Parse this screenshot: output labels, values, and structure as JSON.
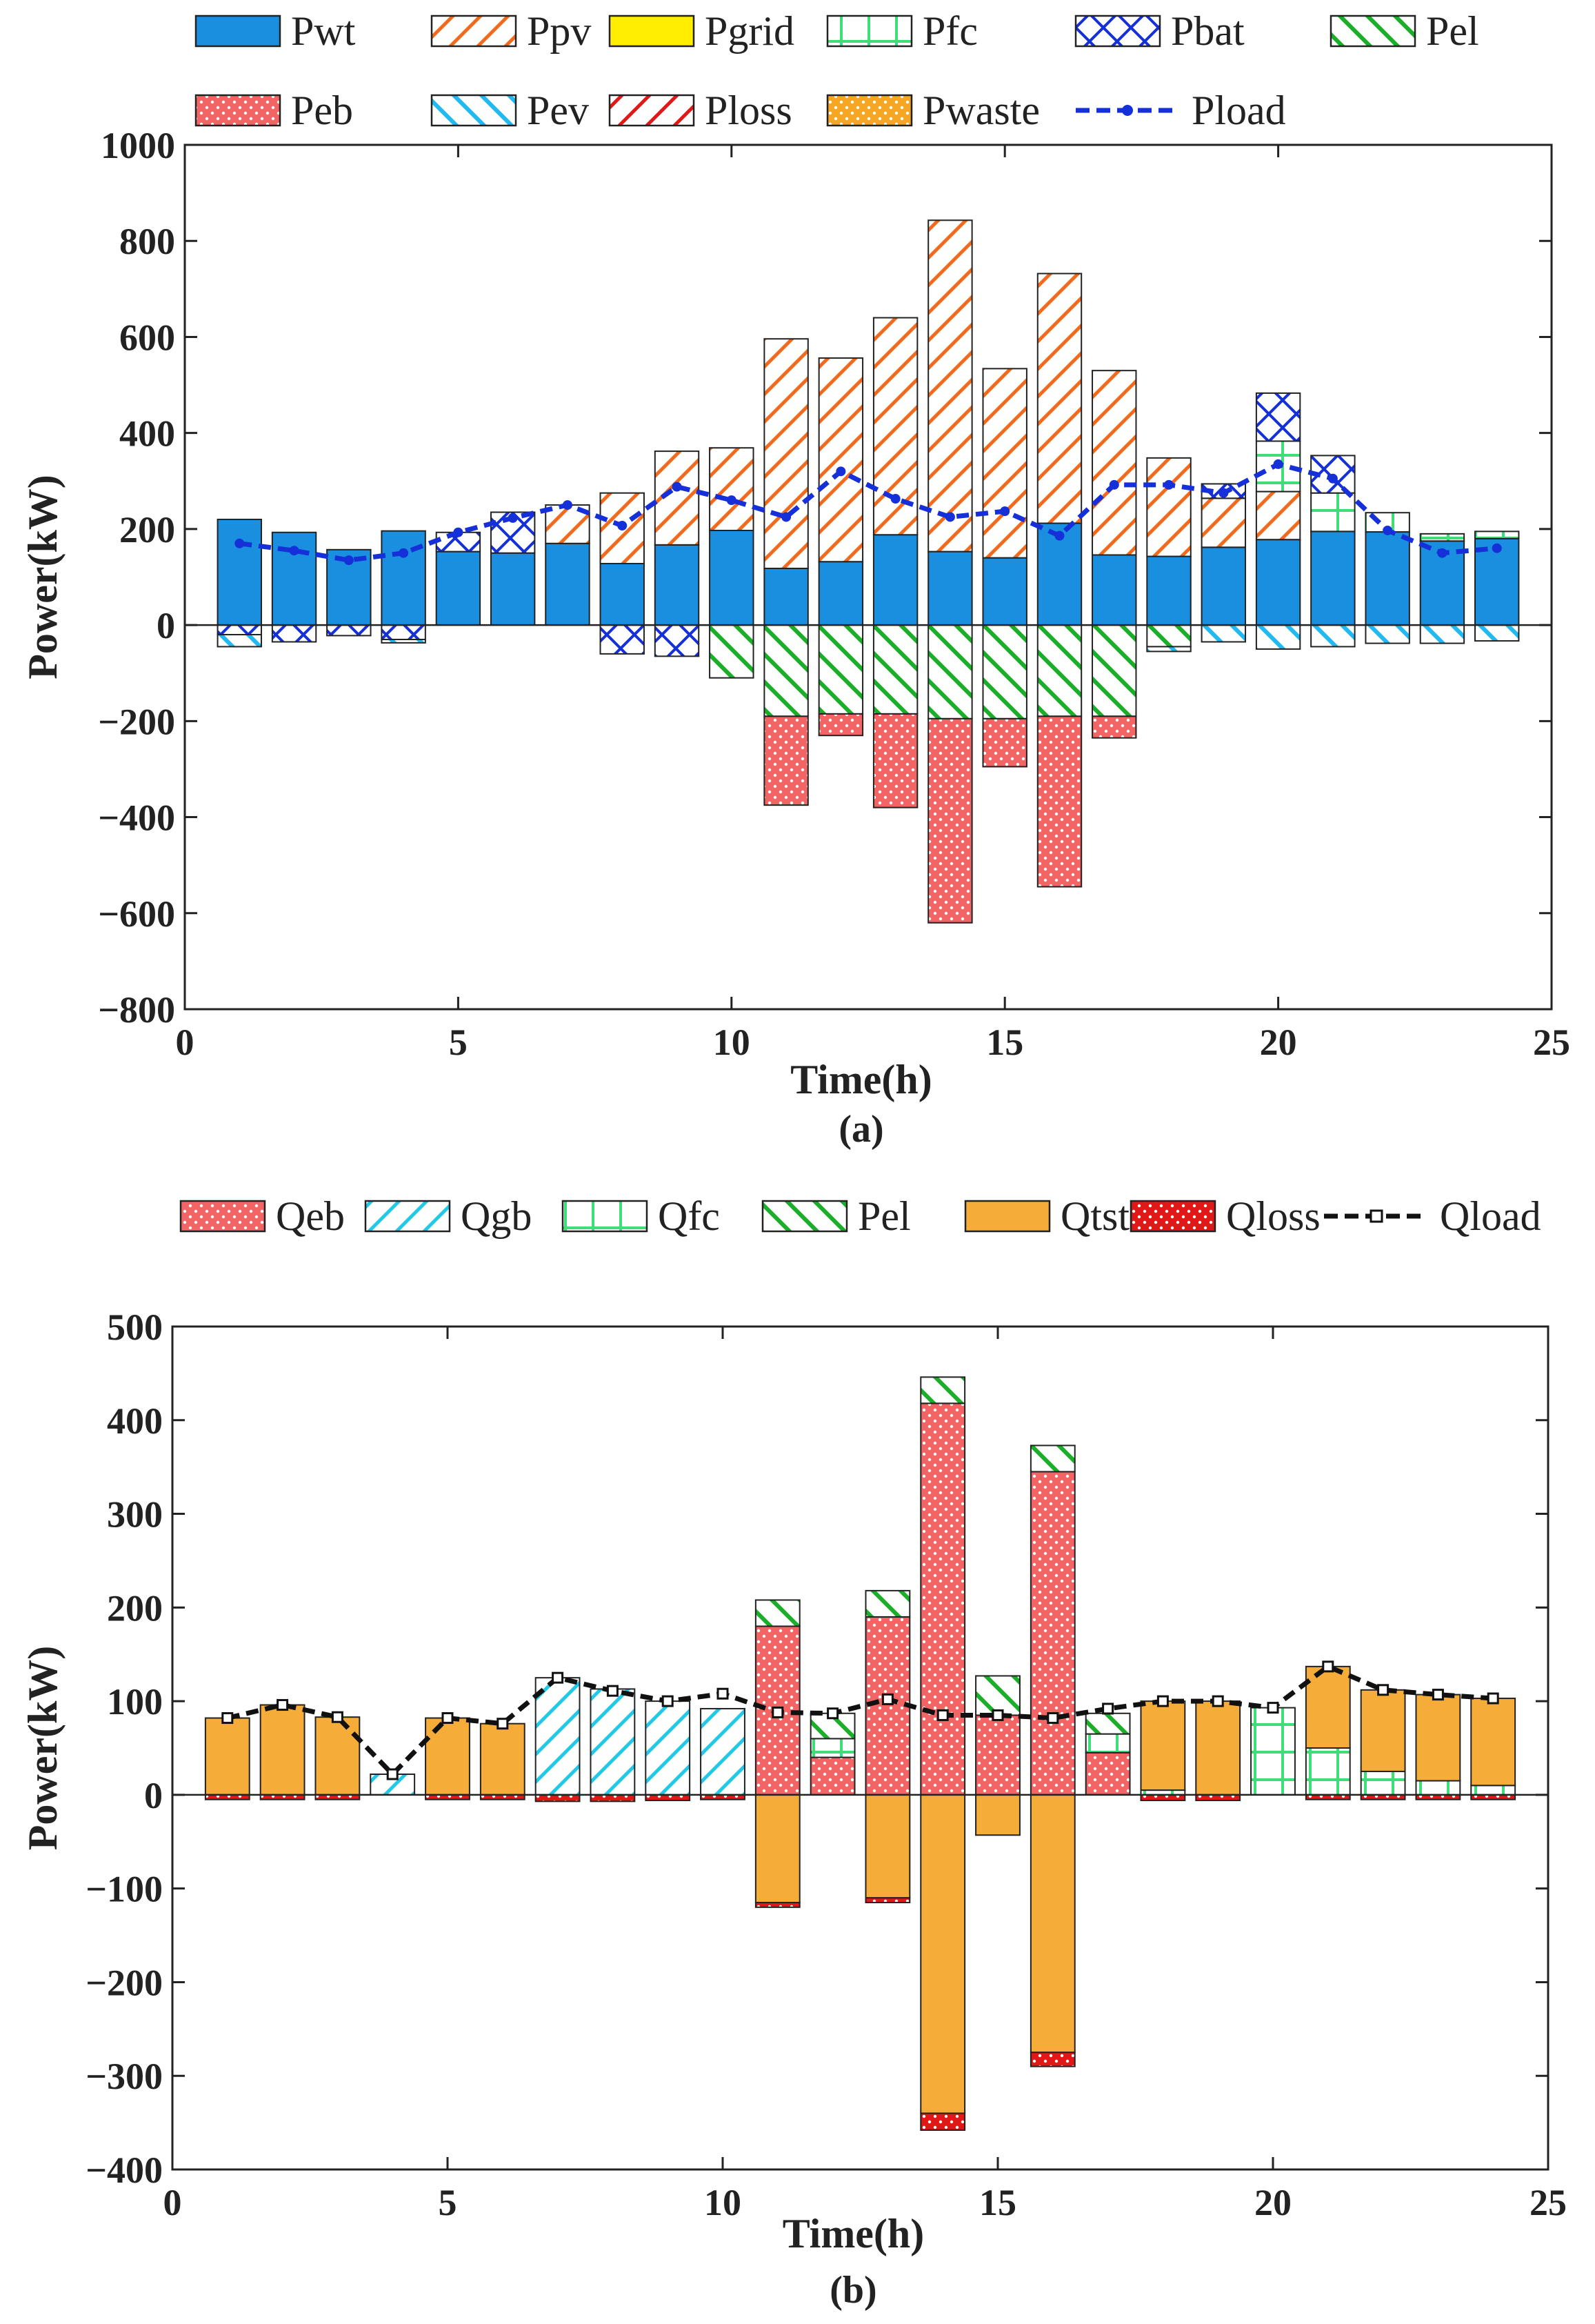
{
  "chart_data": [
    {
      "type": "bar",
      "stacked": true,
      "caption": "(a)",
      "xlabel": "Time(h)",
      "ylabel": "Power(kW)",
      "xlim": [
        0,
        25
      ],
      "ylim": [
        -800,
        1000
      ],
      "xticks": [
        "0",
        "5",
        "10",
        "15",
        "20",
        "25"
      ],
      "yticks": [
        "1000",
        "800",
        "600",
        "400",
        "200",
        "0",
        "−200",
        "−400",
        "−600",
        "−800"
      ],
      "x": [
        1,
        2,
        3,
        4,
        5,
        6,
        7,
        8,
        9,
        10,
        11,
        12,
        13,
        14,
        15,
        16,
        17,
        18,
        19,
        20,
        21,
        22,
        23,
        24
      ],
      "series": [
        {
          "name": "Pwt",
          "color": "#1a8fe0",
          "pattern": "solid",
          "values": [
            220,
            193,
            157,
            196,
            153,
            150,
            170,
            128,
            167,
            197,
            118,
            132,
            188,
            153,
            140,
            212,
            146,
            143,
            162,
            178,
            195,
            194,
            175,
            180
          ]
        },
        {
          "name": "Ppv",
          "color": "#f26b1d",
          "pattern": "diag",
          "values": [
            0,
            0,
            0,
            0,
            0,
            0,
            80,
            147,
            195,
            172,
            478,
            424,
            452,
            690,
            394,
            520,
            384,
            205,
            102,
            100,
            0,
            0,
            0,
            0
          ]
        },
        {
          "name": "Pgrid",
          "color": "#ffee00",
          "pattern": "solid",
          "values": [
            0,
            0,
            0,
            0,
            0,
            0,
            0,
            0,
            0,
            0,
            0,
            0,
            0,
            0,
            0,
            0,
            0,
            0,
            0,
            0,
            0,
            0,
            0,
            0
          ]
        },
        {
          "name": "Pfc",
          "color": "#3fdc78",
          "pattern": "grid",
          "values": [
            0,
            0,
            0,
            0,
            0,
            0,
            0,
            0,
            0,
            0,
            0,
            0,
            0,
            0,
            0,
            0,
            0,
            0,
            0,
            105,
            80,
            40,
            15,
            15
          ]
        },
        {
          "name": "Pbat",
          "color": "#1530d8",
          "pattern": "cross",
          "values": [
            -20,
            -35,
            -22,
            -30,
            40,
            85,
            0,
            -60,
            -65,
            0,
            0,
            0,
            0,
            0,
            0,
            0,
            0,
            0,
            30,
            100,
            78,
            0,
            0,
            0
          ]
        },
        {
          "name": "Pel",
          "color": "#1aae2a",
          "pattern": "diagrev",
          "values": [
            0,
            0,
            0,
            0,
            0,
            0,
            0,
            0,
            0,
            -110,
            -190,
            -185,
            -185,
            -195,
            -195,
            -190,
            -190,
            -45,
            0,
            0,
            0,
            0,
            0,
            0
          ]
        },
        {
          "name": "Peb",
          "color": "#f36464",
          "pattern": "dots",
          "values": [
            0,
            0,
            0,
            0,
            0,
            0,
            0,
            0,
            0,
            0,
            -185,
            -45,
            -195,
            -425,
            -100,
            -355,
            -45,
            0,
            0,
            0,
            0,
            0,
            0,
            0
          ]
        },
        {
          "name": "Pev",
          "color": "#22b8f0",
          "pattern": "diagrev",
          "values": [
            -25,
            0,
            0,
            -7,
            0,
            0,
            0,
            0,
            0,
            0,
            0,
            0,
            0,
            0,
            0,
            0,
            0,
            -10,
            -35,
            -50,
            -45,
            -38,
            -38,
            -33
          ]
        },
        {
          "name": "Ploss",
          "color": "#e01818",
          "pattern": "diag",
          "values": [
            0,
            0,
            0,
            0,
            0,
            0,
            0,
            0,
            0,
            0,
            0,
            0,
            0,
            0,
            0,
            0,
            0,
            0,
            0,
            0,
            0,
            0,
            0,
            0
          ]
        },
        {
          "name": "Pwaste",
          "color": "#f5a623",
          "pattern": "dots",
          "values": [
            0,
            0,
            0,
            0,
            0,
            0,
            0,
            0,
            0,
            0,
            0,
            0,
            0,
            0,
            0,
            0,
            0,
            0,
            0,
            0,
            0,
            0,
            0,
            0
          ]
        }
      ],
      "line": {
        "name": "Pload",
        "color": "#1530d8",
        "style": "dashed-star",
        "values": [
          170,
          155,
          135,
          150,
          193,
          223,
          250,
          207,
          288,
          260,
          225,
          320,
          263,
          225,
          237,
          186,
          292,
          292,
          275,
          335,
          305,
          197,
          150,
          160
        ]
      }
    },
    {
      "type": "bar",
      "stacked": true,
      "caption": "(b)",
      "xlabel": "Time(h)",
      "ylabel": "Power(kW)",
      "xlim": [
        0,
        25
      ],
      "ylim": [
        -400,
        500
      ],
      "xticks": [
        "0",
        "5",
        "10",
        "15",
        "20",
        "25"
      ],
      "yticks": [
        "500",
        "400",
        "300",
        "200",
        "100",
        "0",
        "−100",
        "−200",
        "−300",
        "−400"
      ],
      "x": [
        1,
        2,
        3,
        4,
        5,
        6,
        7,
        8,
        9,
        10,
        11,
        12,
        13,
        14,
        15,
        16,
        17,
        18,
        19,
        20,
        21,
        22,
        23,
        24
      ],
      "series": [
        {
          "name": "Qeb",
          "color": "#f36464",
          "pattern": "dots",
          "values": [
            0,
            0,
            0,
            0,
            0,
            0,
            0,
            0,
            0,
            0,
            180,
            40,
            190,
            418,
            85,
            345,
            45,
            0,
            0,
            0,
            0,
            0,
            0,
            0
          ]
        },
        {
          "name": "Qgb",
          "color": "#22c8e8",
          "pattern": "diag",
          "values": [
            0,
            0,
            0,
            22,
            0,
            0,
            125,
            113,
            100,
            92,
            0,
            0,
            0,
            0,
            0,
            0,
            0,
            0,
            0,
            0,
            0,
            0,
            0,
            0
          ]
        },
        {
          "name": "Qfc",
          "color": "#3fdc78",
          "pattern": "grid",
          "values": [
            0,
            0,
            0,
            0,
            0,
            0,
            0,
            0,
            0,
            0,
            0,
            20,
            0,
            0,
            0,
            0,
            20,
            5,
            0,
            93,
            50,
            25,
            15,
            10
          ]
        },
        {
          "name": "Pel",
          "color": "#1aae2a",
          "pattern": "diagrev",
          "values": [
            0,
            0,
            0,
            0,
            0,
            0,
            0,
            0,
            0,
            0,
            28,
            27,
            28,
            28,
            42,
            28,
            22,
            0,
            0,
            0,
            0,
            0,
            0,
            0
          ]
        },
        {
          "name": "Qtst",
          "color": "#f5ac38",
          "pattern": "solid",
          "values": [
            82,
            96,
            83,
            0,
            82,
            76,
            0,
            0,
            0,
            0,
            -115,
            0,
            -110,
            -340,
            -43,
            -275,
            0,
            95,
            100,
            0,
            87,
            87,
            92,
            93
          ]
        },
        {
          "name": "Qloss",
          "color": "#e01818",
          "pattern": "dots",
          "values": [
            -5,
            -5,
            -5,
            0,
            -5,
            -5,
            -7,
            -7,
            -6,
            -5,
            -5,
            0,
            -5,
            -18,
            0,
            -15,
            0,
            -6,
            -6,
            0,
            -5,
            -5,
            -5,
            -5
          ]
        }
      ],
      "line": {
        "name": "Qload",
        "color": "#111111",
        "style": "dashed-square",
        "values": [
          82,
          96,
          83,
          22,
          82,
          76,
          125,
          111,
          100,
          108,
          88,
          87,
          102,
          85,
          85,
          82,
          92,
          100,
          100,
          93,
          137,
          112,
          107,
          103
        ]
      }
    }
  ]
}
